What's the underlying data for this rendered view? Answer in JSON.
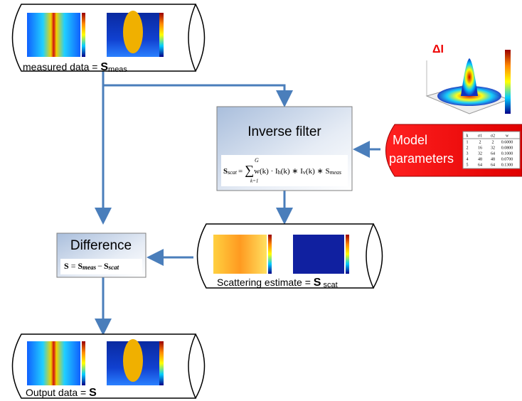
{
  "measured": {
    "label": "measured data = ",
    "sym": "S",
    "sub": "meas"
  },
  "inverse_filter": {
    "title": "Inverse filter",
    "formula": {
      "lhs": "S",
      "lhs_sub": "scat",
      "eq": "=",
      "sum": "∑",
      "upper": "G",
      "lower": "k=1",
      "term1": "w(k) · I",
      "sub1": "h",
      "term2": "(k) ∗ I",
      "sub2": "v",
      "term3": "(k) ∗ S",
      "sub3": "meas"
    }
  },
  "model": {
    "title_line1": "Model",
    "title_line2": "parameters",
    "delta": "ΔI",
    "table": {
      "header": [
        "k",
        "σ1",
        "σ2",
        "w"
      ],
      "rows": [
        [
          "1",
          "2",
          "2",
          "0.6000"
        ],
        [
          "2",
          "16",
          "32",
          "0.0800"
        ],
        [
          "3",
          "32",
          "64",
          "0.1000"
        ],
        [
          "4",
          "48",
          "48",
          "0.0700"
        ],
        [
          "5",
          "64",
          "64",
          "0.1300"
        ]
      ]
    }
  },
  "difference": {
    "title": "Difference",
    "formula": {
      "lhs": "S",
      "eq": "=",
      "a": "S",
      "a_sub": "meas",
      "minus": "−",
      "b": "S",
      "b_sub": "scat"
    }
  },
  "scattering": {
    "label": "Scattering estimate = ",
    "sym": "S",
    "sub": " scat"
  },
  "output": {
    "label": "Output data = ",
    "sym": "S"
  }
}
